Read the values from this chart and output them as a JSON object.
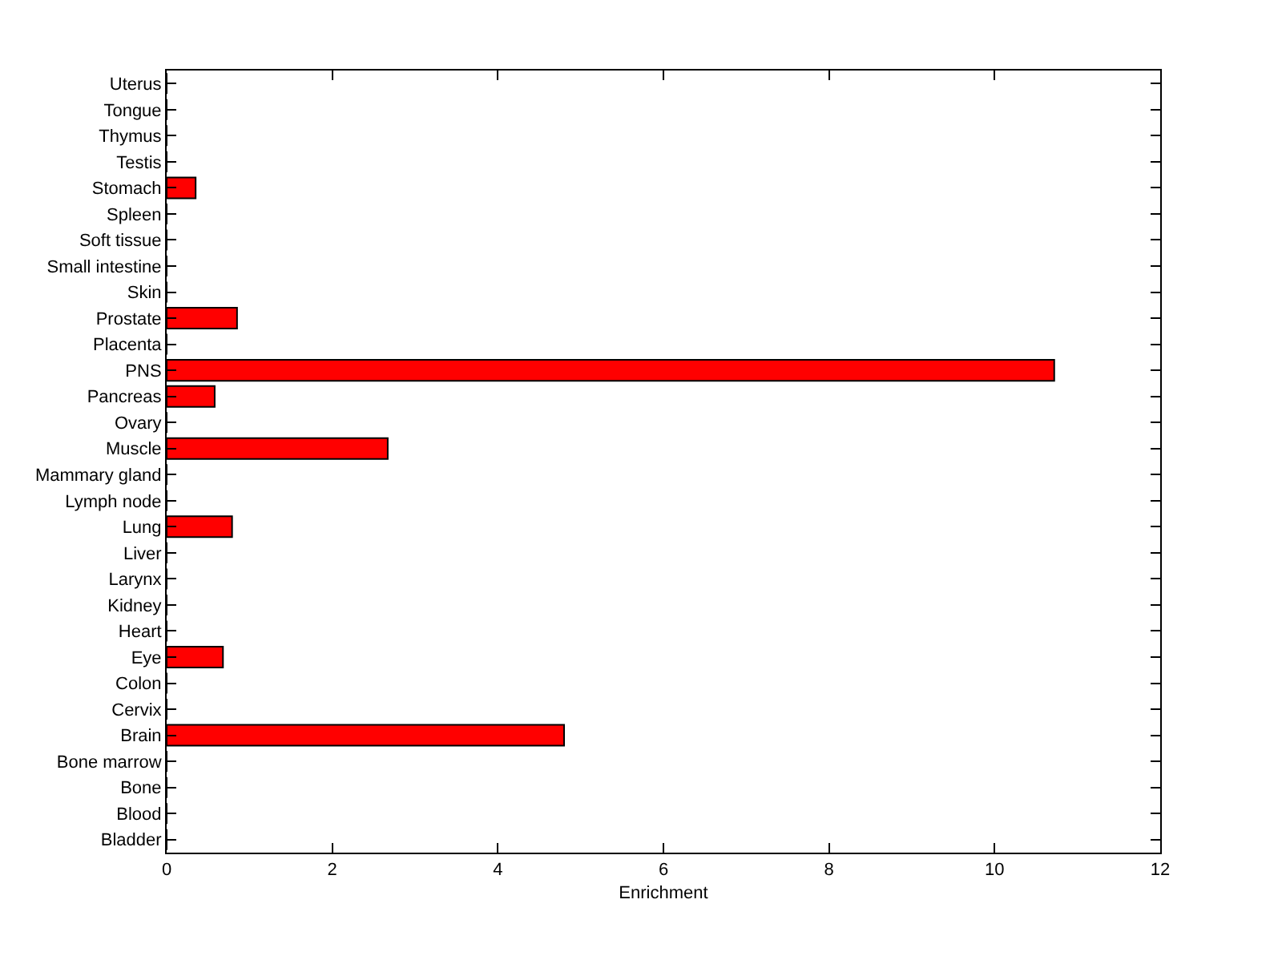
{
  "chart_data": {
    "type": "bar",
    "orientation": "horizontal",
    "xlabel": "Enrichment",
    "categories": [
      "Uterus",
      "Tongue",
      "Thymus",
      "Testis",
      "Stomach",
      "Spleen",
      "Soft tissue",
      "Small intestine",
      "Skin",
      "Prostate",
      "Placenta",
      "PNS",
      "Pancreas",
      "Ovary",
      "Muscle",
      "Mammary gland",
      "Lymph node",
      "Lung",
      "Liver",
      "Larynx",
      "Kidney",
      "Heart",
      "Eye",
      "Colon",
      "Cervix",
      "Brain",
      "Bone marrow",
      "Bone",
      "Blood",
      "Bladder"
    ],
    "values": [
      0,
      0,
      0,
      0,
      0.35,
      0,
      0,
      0,
      0,
      0.85,
      0,
      10.72,
      0.58,
      0,
      2.67,
      0,
      0,
      0.79,
      0,
      0,
      0,
      0,
      0.68,
      0,
      0,
      4.8,
      0,
      0,
      0,
      0
    ],
    "color": "#ff0000",
    "xlim": [
      0,
      12
    ],
    "xticks": [
      0,
      2,
      4,
      6,
      8,
      10,
      12
    ],
    "legend": false
  }
}
